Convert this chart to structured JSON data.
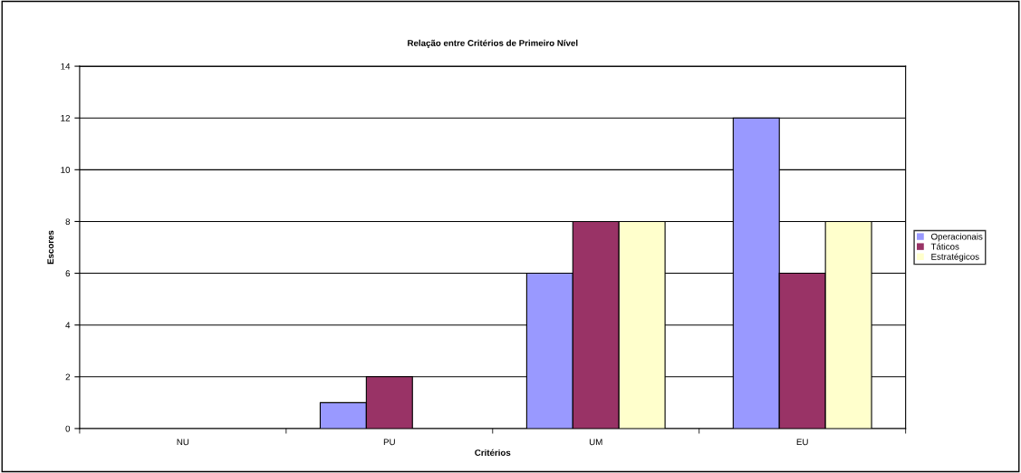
{
  "chart_data": {
    "type": "bar",
    "title": "Relação entre Critérios de Primeiro Nível",
    "xlabel": "Critérios",
    "ylabel": "Escores",
    "categories": [
      "NU",
      "PU",
      "UM",
      "EU"
    ],
    "series": [
      {
        "name": "Operacionais",
        "color": "#9999ff",
        "values": [
          0,
          1,
          6,
          12
        ]
      },
      {
        "name": "Táticos",
        "color": "#993366",
        "values": [
          0,
          2,
          8,
          6
        ]
      },
      {
        "name": "Estratégicos",
        "color": "#ffffcc",
        "values": [
          0,
          0,
          8,
          8
        ]
      }
    ],
    "ylim": [
      0,
      14
    ],
    "yticks": [
      0,
      2,
      4,
      6,
      8,
      10,
      12,
      14
    ],
    "grid": "y",
    "legend": "right"
  }
}
